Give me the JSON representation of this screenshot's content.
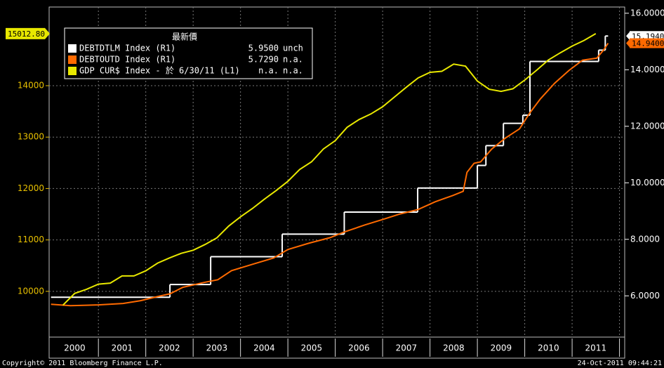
{
  "chart_data": {
    "type": "line",
    "xlim": [
      1999.96,
      2012.11
    ],
    "xticks": [
      {
        "value": 2000.5,
        "label": "2000"
      },
      {
        "value": 2001.5,
        "label": "2001"
      },
      {
        "value": 2002.5,
        "label": "2002"
      },
      {
        "value": 2003.5,
        "label": "2003"
      },
      {
        "value": 2004.5,
        "label": "2004"
      },
      {
        "value": 2005.5,
        "label": "2005"
      },
      {
        "value": 2006.5,
        "label": "2006"
      },
      {
        "value": 2007.5,
        "label": "2007"
      },
      {
        "value": 2008.5,
        "label": "2008"
      },
      {
        "value": 2009.5,
        "label": "2009"
      },
      {
        "value": 2010.5,
        "label": "2010"
      },
      {
        "value": 2011.5,
        "label": "2011"
      }
    ],
    "xgrid": [
      2001,
      2002,
      2003,
      2004,
      2005,
      2006,
      2007,
      2008,
      2009,
      2010,
      2011,
      2012
    ],
    "ylim": [
      9110,
      15530
    ],
    "yticks": [
      10000,
      11000,
      12000,
      13000,
      14000
    ],
    "y2lim": [
      4.54,
      16.22
    ],
    "y2ticks": [
      {
        "value": 6,
        "label": "6.0000"
      },
      {
        "value": 8,
        "label": "8.0000"
      },
      {
        "value": 10,
        "label": "10.0000"
      },
      {
        "value": 12,
        "label": "12.0000"
      },
      {
        "value": 14,
        "label": "14.0000"
      },
      {
        "value": 16,
        "label": "16.0000"
      }
    ],
    "grid": true,
    "legend": {
      "title": "最新價",
      "position": "upper left"
    },
    "series": [
      {
        "name": "DEBTDTLM Index (R1)",
        "legend_value": "5.9500",
        "legend_change": "unch",
        "color": "#ffffff",
        "axis": "y2",
        "drawstyle": "steps-post",
        "last_label": "15.1940",
        "x": [
          2000.0,
          2002.51,
          2003.37,
          2004.88,
          2006.19,
          2007.74,
          2009.0,
          2009.18,
          2009.55,
          2009.96,
          2010.11,
          2011.56,
          2011.7,
          2011.76
        ],
        "values": [
          5.95,
          6.4,
          7.384,
          8.184,
          8.965,
          9.815,
          10.615,
          11.315,
          12.104,
          12.394,
          14.294,
          14.694,
          15.194,
          15.194
        ]
      },
      {
        "name": "DEBTOUTD Index (R1)",
        "legend_value": "5.7290",
        "legend_change": "n.a.",
        "color": "#ff6a00",
        "axis": "y2",
        "last_label": "14.9400",
        "x": [
          2000.0,
          2000.41,
          2001.0,
          2001.52,
          2001.89,
          2002.26,
          2002.51,
          2002.78,
          2003.22,
          2003.52,
          2003.81,
          2004.26,
          2004.7,
          2005.0,
          2005.44,
          2005.89,
          2006.19,
          2006.63,
          2007.0,
          2007.37,
          2007.74,
          2008.11,
          2008.48,
          2008.7,
          2008.78,
          2008.93,
          2009.07,
          2009.3,
          2009.59,
          2009.89,
          2010.11,
          2010.33,
          2010.63,
          2010.93,
          2011.22,
          2011.52,
          2011.67,
          2011.76
        ],
        "values": [
          5.7,
          5.65,
          5.68,
          5.73,
          5.83,
          5.98,
          6.07,
          6.3,
          6.47,
          6.57,
          6.89,
          7.12,
          7.34,
          7.64,
          7.86,
          8.06,
          8.26,
          8.51,
          8.7,
          8.9,
          9.05,
          9.33,
          9.55,
          9.7,
          10.37,
          10.69,
          10.74,
          11.19,
          11.58,
          11.91,
          12.48,
          12.97,
          13.52,
          13.97,
          14.34,
          14.41,
          14.71,
          14.94
        ]
      },
      {
        "name": "GDP CUR$ Index - 於 6/30/11 (L1)",
        "legend_value": "n.a.",
        "legend_change": "n.a.",
        "color": "#e8e800",
        "axis": "y",
        "last_label": "15012.80",
        "x": [
          2000.25,
          2000.5,
          2000.75,
          2001.0,
          2001.25,
          2001.5,
          2001.75,
          2002.0,
          2002.25,
          2002.5,
          2002.75,
          2003.0,
          2003.25,
          2003.5,
          2003.75,
          2004.0,
          2004.25,
          2004.5,
          2004.75,
          2005.0,
          2005.25,
          2005.5,
          2005.75,
          2006.0,
          2006.25,
          2006.5,
          2006.75,
          2007.0,
          2007.25,
          2007.5,
          2007.75,
          2008.0,
          2008.25,
          2008.5,
          2008.75,
          2009.0,
          2009.25,
          2009.5,
          2009.75,
          2010.0,
          2010.25,
          2010.5,
          2010.75,
          2011.0,
          2011.25,
          2011.5
        ],
        "values": [
          9730,
          9960,
          10040,
          10140,
          10160,
          10300,
          10300,
          10400,
          10550,
          10650,
          10740,
          10800,
          10910,
          11040,
          11270,
          11450,
          11610,
          11790,
          11960,
          12140,
          12370,
          12520,
          12770,
          12930,
          13190,
          13340,
          13450,
          13590,
          13780,
          13970,
          14150,
          14260,
          14280,
          14420,
          14380,
          14090,
          13930,
          13890,
          13940,
          14110,
          14300,
          14500,
          14640,
          14770,
          14880,
          15012.8
        ]
      }
    ],
    "footer_left": "Copyright© 2011 Bloomberg Finance L.P.",
    "footer_right": "24-Oct-2011 09:44:21"
  }
}
